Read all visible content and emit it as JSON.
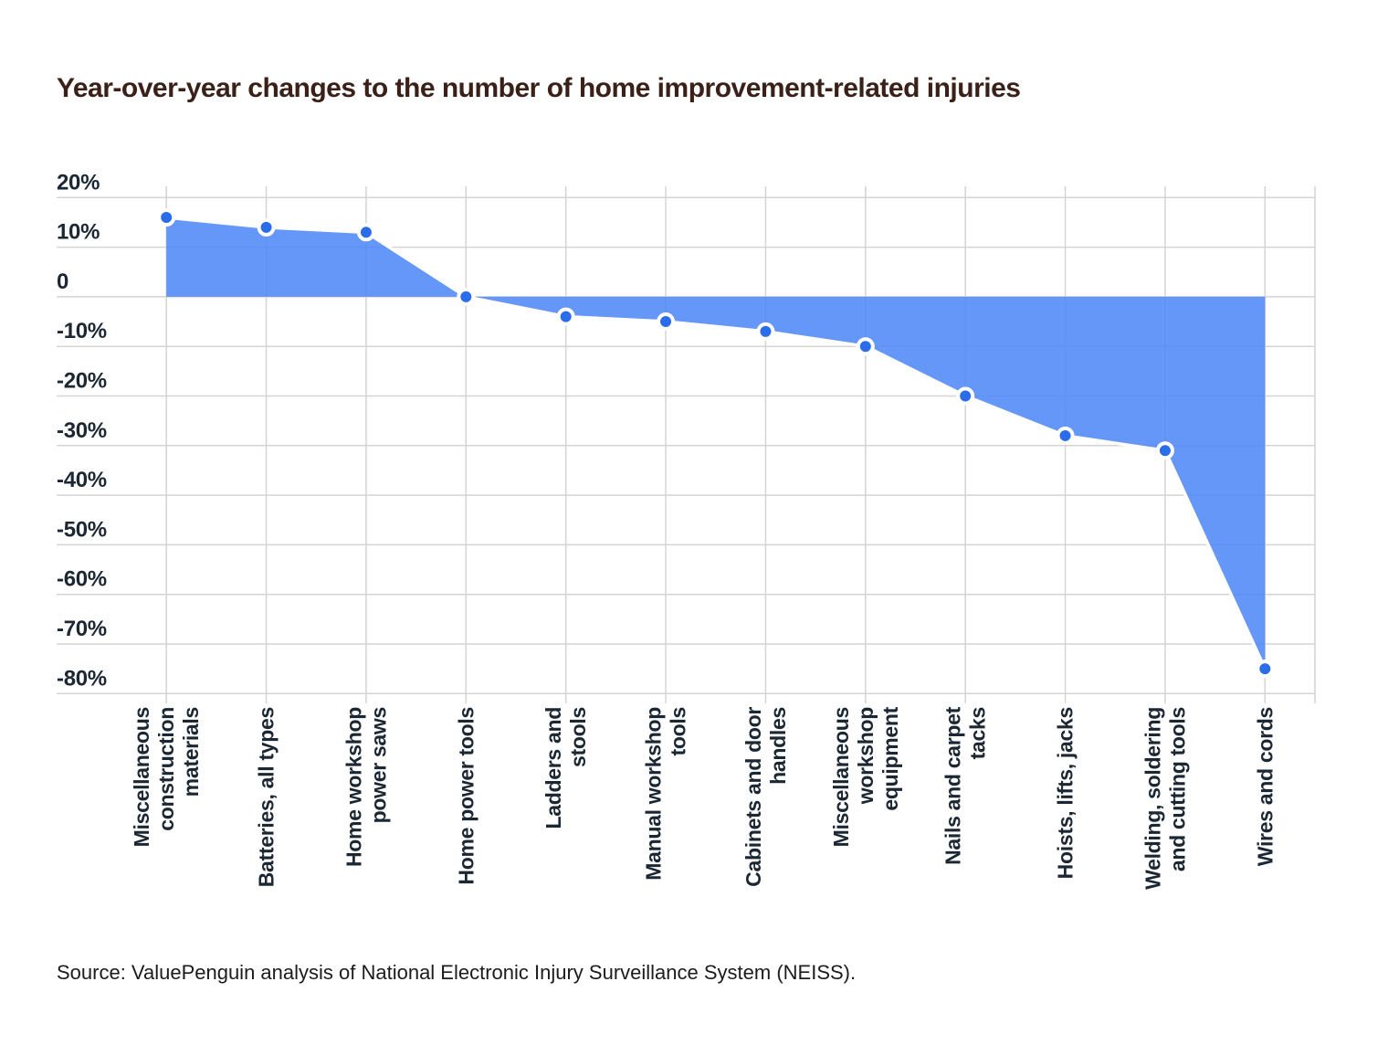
{
  "title": "Year-over-year changes to the number of home improvement-related injuries",
  "source": "Source: ValuePenguin analysis of National Electronic Injury Surveillance System (NEISS).",
  "chart_data": {
    "type": "area",
    "title": "Year-over-year changes to the number of home improvement-related injuries",
    "categories": [
      "Miscellaneous construction materials",
      "Batteries, all types",
      "Home workshop power saws",
      "Home power tools",
      "Ladders and stools",
      "Manual workshop tools",
      "Cabinets and door handles",
      "Miscellaneous workshop equipment",
      "Nails and carpet tacks",
      "Hoists, lifts, jacks",
      "Welding, soldering and cutting tools",
      "Wires and cords"
    ],
    "category_lines": [
      [
        "Miscellaneous",
        "construction",
        "materials"
      ],
      [
        "Batteries, all types"
      ],
      [
        "Home workshop",
        "power saws"
      ],
      [
        "Home power tools"
      ],
      [
        "Ladders and",
        "stools"
      ],
      [
        "Manual workshop",
        "tools"
      ],
      [
        "Cabinets and door",
        "handles"
      ],
      [
        "Miscellaneous",
        "workshop",
        "equipment"
      ],
      [
        "Nails and carpet",
        "tacks"
      ],
      [
        "Hoists, lifts, jacks"
      ],
      [
        "Welding, soldering",
        "and cutting tools"
      ],
      [
        "Wires and cords"
      ]
    ],
    "values": [
      16,
      14,
      13,
      0,
      -4,
      -5,
      -7,
      -10,
      -20,
      -28,
      -31,
      -75
    ],
    "unit": "%",
    "xlabel": "",
    "ylabel": "",
    "ylim": [
      -80,
      20
    ],
    "baseline": 0,
    "grid": true,
    "legend": false,
    "y_ticks": [
      {
        "label": "20%",
        "value": 20
      },
      {
        "label": "10%",
        "value": 10
      },
      {
        "label": "0",
        "value": 0
      },
      {
        "label": "-10%",
        "value": -10
      },
      {
        "label": "-20%",
        "value": -20
      },
      {
        "label": "-30%",
        "value": -30
      },
      {
        "label": "-40%",
        "value": -40
      },
      {
        "label": "-50%",
        "value": -50
      },
      {
        "label": "-60%",
        "value": -60
      },
      {
        "label": "-70%",
        "value": -70
      },
      {
        "label": "-80%",
        "value": -80
      }
    ],
    "colors": {
      "area_fill": "#4e89f6",
      "marker": "#2a6ce9",
      "series_line": "#ffffff",
      "grid": "#d4d4d4",
      "axis_text": "#1b2733",
      "title_text": "#3b2018"
    }
  }
}
